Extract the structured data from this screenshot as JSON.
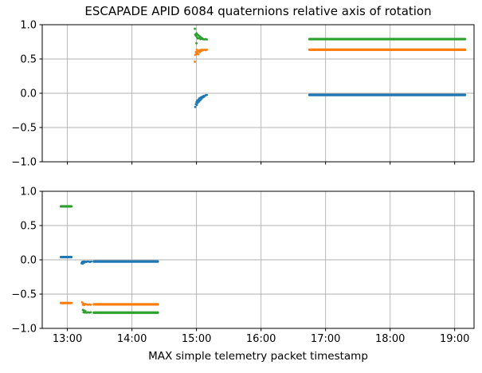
{
  "figure": {
    "title": "ESCAPADE APID 6084 quaternions relative axis of rotation",
    "xlabel": "MAX simple telemetry packet timestamp"
  },
  "chart_data": {
    "type": "scatter",
    "title": "ESCAPADE APID 6084 quaternions relative axis of rotation",
    "xlabel": "MAX simple telemetry packet timestamp",
    "ylabel": "",
    "grid": true,
    "legend": false,
    "xlim": [
      12.61,
      19.3
    ],
    "ylim": [
      -1.0,
      1.0
    ],
    "x_ticks": {
      "values": [
        13,
        14,
        15,
        16,
        17,
        18,
        19
      ],
      "labels": [
        "13:00",
        "14:00",
        "15:00",
        "16:00",
        "17:00",
        "18:00",
        "19:00"
      ]
    },
    "y_ticks": {
      "values": [
        1.0,
        0.5,
        0.0,
        -0.5,
        -1.0
      ],
      "labels": [
        "1.0",
        "0.5",
        "0.0",
        "−0.5",
        "−1.0"
      ]
    },
    "grid_y_values": [
      0.5,
      0.0,
      -0.5
    ],
    "colors": {
      "blue": "#1f77b4",
      "orange": "#ff7f0e",
      "green": "#2ca02c",
      "grid": "#b0b0b0",
      "spine": "#000000"
    },
    "subplots": [
      {
        "id": "top",
        "series": [
          {
            "name": "blue",
            "color": "blue",
            "segments": [
              [
                16.75,
                19.16,
                -0.025
              ]
            ],
            "points": [
              [
                14.98,
                -0.2
              ],
              [
                14.99,
                -0.16
              ],
              [
                15.0,
                -0.13
              ],
              [
                15.005,
                -0.17
              ],
              [
                15.01,
                -0.11
              ],
              [
                15.02,
                -0.14
              ],
              [
                15.03,
                -0.09
              ],
              [
                15.04,
                -0.12
              ],
              [
                15.05,
                -0.07
              ],
              [
                15.06,
                -0.1
              ],
              [
                15.07,
                -0.06
              ],
              [
                15.08,
                -0.08
              ],
              [
                15.09,
                -0.05
              ],
              [
                15.1,
                -0.06
              ],
              [
                15.11,
                -0.04
              ],
              [
                15.12,
                -0.05
              ],
              [
                15.14,
                -0.03
              ],
              [
                15.16,
                -0.025
              ]
            ]
          },
          {
            "name": "orange",
            "color": "orange",
            "segments": [
              [
                16.75,
                19.16,
                0.635
              ]
            ],
            "points": [
              [
                14.975,
                0.46
              ],
              [
                14.98,
                0.56
              ],
              [
                14.99,
                0.6
              ],
              [
                15.0,
                0.575
              ],
              [
                15.005,
                0.635
              ],
              [
                15.01,
                0.59
              ],
              [
                15.02,
                0.615
              ],
              [
                15.03,
                0.57
              ],
              [
                15.04,
                0.625
              ],
              [
                15.05,
                0.6
              ],
              [
                15.06,
                0.63
              ],
              [
                15.07,
                0.615
              ],
              [
                15.08,
                0.635
              ],
              [
                15.09,
                0.625
              ],
              [
                15.1,
                0.63
              ],
              [
                15.12,
                0.635
              ],
              [
                15.14,
                0.63
              ],
              [
                15.16,
                0.635
              ]
            ]
          },
          {
            "name": "green",
            "color": "green",
            "segments": [
              [
                16.75,
                19.16,
                0.79
              ]
            ],
            "points": [
              [
                14.975,
                0.94
              ],
              [
                14.98,
                0.855
              ],
              [
                14.99,
                0.84
              ],
              [
                15.0,
                0.875
              ],
              [
                15.005,
                0.82
              ],
              [
                15.01,
                0.86
              ],
              [
                15.02,
                0.8
              ],
              [
                15.03,
                0.845
              ],
              [
                15.04,
                0.805
              ],
              [
                15.05,
                0.83
              ],
              [
                15.06,
                0.79
              ],
              [
                15.07,
                0.815
              ],
              [
                15.08,
                0.795
              ],
              [
                15.09,
                0.8
              ],
              [
                15.1,
                0.79
              ],
              [
                15.12,
                0.785
              ],
              [
                15.14,
                0.79
              ],
              [
                15.16,
                0.785
              ],
              [
                15.0,
                0.73
              ]
            ]
          }
        ]
      },
      {
        "id": "bottom",
        "series": [
          {
            "name": "blue",
            "color": "blue",
            "segments": [
              [
                12.9,
                13.06,
                0.04
              ],
              [
                13.41,
                14.4,
                -0.025
              ]
            ],
            "points": [
              [
                13.22,
                -0.05
              ],
              [
                13.23,
                -0.03
              ],
              [
                13.235,
                -0.055
              ],
              [
                13.25,
                -0.025
              ],
              [
                13.26,
                -0.04
              ],
              [
                13.27,
                -0.025
              ],
              [
                13.29,
                -0.03
              ],
              [
                13.31,
                -0.025
              ],
              [
                13.33,
                -0.025
              ],
              [
                13.35,
                -0.03
              ],
              [
                13.37,
                -0.025
              ]
            ]
          },
          {
            "name": "orange",
            "color": "orange",
            "segments": [
              [
                12.9,
                13.06,
                -0.63
              ],
              [
                13.41,
                14.4,
                -0.65
              ]
            ],
            "points": [
              [
                13.23,
                -0.62
              ],
              [
                13.24,
                -0.655
              ],
              [
                13.25,
                -0.64
              ],
              [
                13.26,
                -0.66
              ],
              [
                13.28,
                -0.645
              ],
              [
                13.3,
                -0.65
              ],
              [
                13.32,
                -0.655
              ],
              [
                13.34,
                -0.65
              ],
              [
                13.36,
                -0.655
              ]
            ]
          },
          {
            "name": "green",
            "color": "green",
            "segments": [
              [
                12.9,
                13.06,
                0.78
              ],
              [
                13.41,
                14.4,
                -0.77
              ]
            ],
            "points": [
              [
                13.24,
                -0.73
              ],
              [
                13.25,
                -0.765
              ],
              [
                13.26,
                -0.74
              ],
              [
                13.27,
                -0.77
              ],
              [
                13.28,
                -0.75
              ],
              [
                13.3,
                -0.77
              ],
              [
                13.32,
                -0.765
              ],
              [
                13.34,
                -0.77
              ],
              [
                13.36,
                -0.765
              ]
            ]
          }
        ]
      }
    ]
  }
}
